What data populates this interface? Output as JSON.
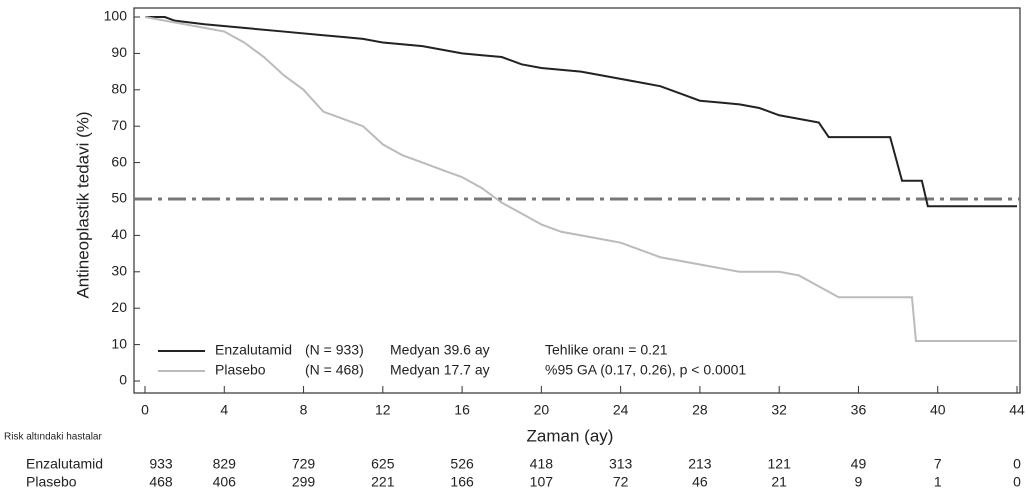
{
  "chart_data": {
    "type": "line",
    "ylabel": "Antineoplastik tedavi (%)",
    "xlabel": "Zaman (ay)",
    "xlim": [
      0,
      44
    ],
    "xticks": [
      0,
      4,
      8,
      12,
      16,
      20,
      24,
      28,
      32,
      36,
      40,
      44
    ],
    "ylim": [
      0,
      100
    ],
    "yticks": [
      0,
      10,
      20,
      30,
      40,
      50,
      60,
      70,
      80,
      90,
      100
    ],
    "reference_line": {
      "value": 50,
      "color": "#777777"
    },
    "series": [
      {
        "name": "Enzalutamid",
        "color": "#222222",
        "x": [
          0,
          1,
          1.5,
          3,
          5,
          7,
          9,
          10,
          11,
          12,
          14,
          15,
          16,
          17,
          18,
          19,
          20,
          22,
          23,
          24,
          25,
          26,
          27,
          28,
          29,
          30,
          31,
          32,
          33,
          34,
          34.5,
          37.6,
          37.9,
          38.2,
          39.2,
          39.5,
          44
        ],
        "values": [
          100,
          100,
          99,
          98,
          97,
          96,
          95,
          94.5,
          94,
          93,
          92,
          91,
          90,
          89.5,
          89,
          87,
          86,
          85,
          84,
          83,
          82,
          81,
          79,
          77,
          76.5,
          76,
          75,
          73,
          72,
          71,
          67,
          67,
          61,
          55,
          55,
          48,
          48
        ]
      },
      {
        "name": "Plasebo",
        "color": "#bbbbbb",
        "x": [
          0,
          1,
          2,
          3,
          4,
          5,
          6,
          7,
          8,
          9,
          10,
          11,
          12,
          13,
          14,
          15,
          16,
          17,
          18,
          19,
          20,
          21,
          22,
          23,
          24,
          25,
          26,
          27,
          28,
          29,
          30,
          32,
          33,
          34,
          35,
          38.7,
          38.9,
          44
        ],
        "values": [
          100,
          99,
          98,
          97,
          96,
          93,
          89,
          84,
          80,
          74,
          72,
          70,
          65,
          62,
          60,
          58,
          56,
          53,
          49,
          46,
          43,
          41,
          40,
          39,
          38,
          36,
          34,
          33,
          32,
          31,
          30,
          30,
          29,
          26,
          23,
          23,
          11,
          11
        ]
      }
    ],
    "legend_notes": [
      [
        "(N = 933)",
        "Medyan 39.6 ay",
        "Tehlike oranı = 0.21"
      ],
      [
        "(N = 468)",
        "Medyan 17.7 ay",
        "%95 GA  (0.17, 0.26), p < 0.0001"
      ]
    ],
    "risk_table": {
      "title": "Risk altındaki hastalar",
      "rows": [
        {
          "name": "Enzalutamid",
          "values": [
            933,
            829,
            729,
            625,
            526,
            418,
            313,
            213,
            121,
            49,
            7,
            0
          ]
        },
        {
          "name": "Plasebo",
          "values": [
            468,
            406,
            299,
            221,
            166,
            107,
            72,
            46,
            21,
            9,
            1,
            0
          ]
        }
      ]
    }
  }
}
